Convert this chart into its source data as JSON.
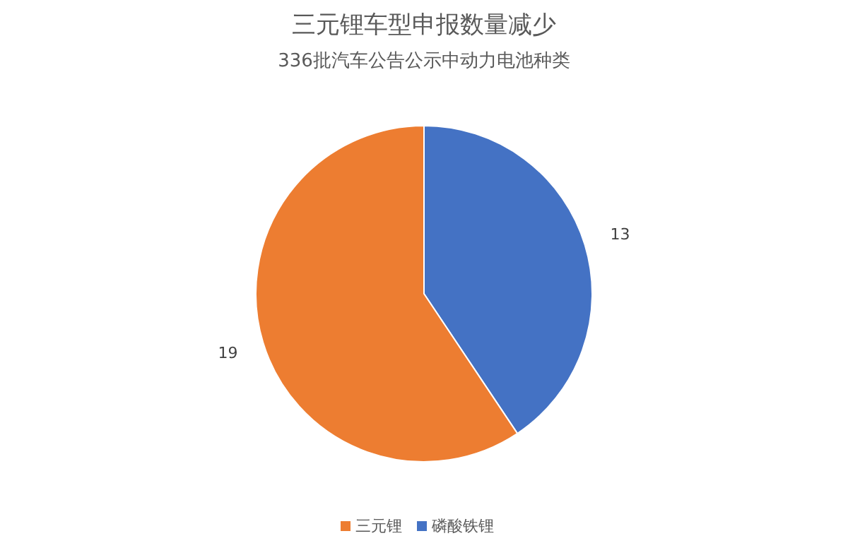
{
  "chart_data": {
    "type": "pie",
    "title": "三元锂车型申报数量减少",
    "subtitle": "336批汽车公告公示中动力电池种类",
    "categories": [
      "磷酸铁锂",
      "三元锂"
    ],
    "values": [
      13,
      19
    ],
    "colors": [
      "#4472c4",
      "#ed7d31"
    ],
    "data_labels": true,
    "legend": "bottom"
  }
}
